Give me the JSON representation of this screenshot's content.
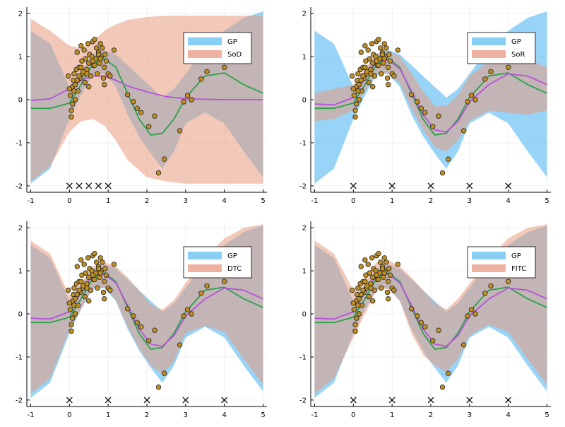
{
  "colors": {
    "gp_band": "#61bdf2",
    "approx_band": "#e89a80",
    "gp_line": "#2aa24a",
    "approx_line": "#b453d8",
    "point_fill": "#c08f22",
    "point_stroke": "#222222",
    "axis": "#000000",
    "grid": "#ececec"
  },
  "chart_data": [
    {
      "type": "line",
      "panel": "top-left",
      "legend": [
        "GP",
        "SoD"
      ],
      "legend_position": "top-right",
      "xlim": [
        -1.1,
        5.1
      ],
      "ylim": [
        -2.15,
        2.15
      ],
      "xticks": [
        "-1",
        "0",
        "1",
        "2",
        "3",
        "4",
        "5"
      ],
      "yticks": [
        "-2",
        "-1",
        "0",
        "1",
        "2"
      ],
      "inducing_x": [
        0,
        0.25,
        0.5,
        0.75,
        1
      ],
      "gp_mean": {
        "x": [
          -1,
          -0.5,
          0,
          0.3,
          0.6,
          0.9,
          1.2,
          1.5,
          1.8,
          2.1,
          2.4,
          2.7,
          3,
          3.5,
          4,
          4.5,
          5
        ],
        "y": [
          -0.2,
          -0.2,
          -0.08,
          0.35,
          0.82,
          0.95,
          0.75,
          0.15,
          -0.45,
          -0.82,
          -0.78,
          -0.45,
          0.05,
          0.55,
          0.62,
          0.35,
          0.15
        ]
      },
      "gp_band": {
        "x": [
          -1,
          -0.5,
          0,
          0.3,
          0.6,
          0.9,
          1.2,
          1.5,
          1.8,
          2.1,
          2.4,
          2.7,
          3,
          3.5,
          4,
          4.5,
          5
        ],
        "lower": [
          -1.95,
          -1.6,
          -0.45,
          0.1,
          0.58,
          0.6,
          0.3,
          -0.35,
          -0.85,
          -1.25,
          -1.6,
          -1.2,
          -0.55,
          -0.3,
          -0.55,
          -1.2,
          -1.8
        ],
        "upper": [
          1.6,
          1.3,
          0.3,
          0.65,
          1.05,
          1.15,
          1.05,
          0.8,
          0.55,
          0.3,
          0.05,
          0.25,
          0.6,
          1.2,
          1.6,
          1.9,
          2.05
        ]
      },
      "approx_mean": {
        "x": [
          -1,
          -0.5,
          0,
          0.3,
          0.6,
          0.9,
          1.2,
          1.5,
          2,
          2.5,
          3,
          4,
          5
        ],
        "y": [
          -0.02,
          0.02,
          0.25,
          0.45,
          0.55,
          0.55,
          0.45,
          0.32,
          0.18,
          0.07,
          0.02,
          0,
          0
        ]
      },
      "approx_band": {
        "x": [
          -1,
          -0.5,
          0,
          0.3,
          0.6,
          0.9,
          1.2,
          1.5,
          2,
          2.5,
          3,
          4,
          5
        ],
        "lower": [
          -1.9,
          -1.55,
          -0.75,
          -0.5,
          -0.45,
          -0.6,
          -0.95,
          -1.4,
          -1.8,
          -1.9,
          -1.95,
          -1.95,
          -1.95
        ],
        "upper": [
          1.88,
          1.6,
          1.25,
          1.2,
          1.35,
          1.6,
          1.75,
          1.85,
          1.92,
          1.95,
          1.95,
          1.95,
          1.95
        ]
      }
    },
    {
      "type": "line",
      "panel": "top-right",
      "legend": [
        "GP",
        "SoR"
      ],
      "legend_position": "top-right",
      "xlim": [
        -1.1,
        5.1
      ],
      "ylim": [
        -2.15,
        2.15
      ],
      "xticks": [
        "-1",
        "0",
        "1",
        "2",
        "3",
        "4",
        "5"
      ],
      "yticks": [
        "-2",
        "-1",
        "0",
        "1",
        "2"
      ],
      "inducing_x": [
        0,
        1,
        2,
        3,
        4
      ],
      "gp_mean": {
        "x": [
          -1,
          -0.5,
          0,
          0.3,
          0.6,
          0.9,
          1.2,
          1.5,
          1.8,
          2.1,
          2.4,
          2.7,
          3,
          3.5,
          4,
          4.5,
          5
        ],
        "y": [
          -0.2,
          -0.2,
          -0.08,
          0.35,
          0.82,
          0.95,
          0.75,
          0.15,
          -0.45,
          -0.82,
          -0.78,
          -0.45,
          0.05,
          0.55,
          0.62,
          0.35,
          0.15
        ]
      },
      "gp_band": {
        "x": [
          -1,
          -0.5,
          0,
          0.3,
          0.6,
          0.9,
          1.2,
          1.5,
          1.8,
          2.1,
          2.4,
          2.7,
          3,
          3.5,
          4,
          4.5,
          5
        ],
        "lower": [
          -1.95,
          -1.6,
          -0.45,
          0.1,
          0.58,
          0.6,
          0.3,
          -0.35,
          -0.85,
          -1.25,
          -1.6,
          -1.2,
          -0.55,
          -0.3,
          -0.55,
          -1.2,
          -1.8
        ],
        "upper": [
          1.6,
          1.3,
          0.3,
          0.65,
          1.05,
          1.15,
          1.05,
          0.8,
          0.55,
          0.3,
          0.05,
          0.25,
          0.6,
          1.2,
          1.6,
          1.9,
          2.05
        ]
      },
      "approx_mean": {
        "x": [
          -1,
          -0.5,
          0,
          0.3,
          0.6,
          0.9,
          1.2,
          1.5,
          1.8,
          2.1,
          2.4,
          2.7,
          3,
          3.5,
          4,
          4.5,
          5
        ],
        "y": [
          -0.1,
          -0.12,
          0.05,
          0.5,
          0.9,
          0.92,
          0.72,
          0.2,
          -0.35,
          -0.7,
          -0.75,
          -0.5,
          -0.05,
          0.35,
          0.6,
          0.55,
          0.35
        ]
      },
      "approx_band": {
        "x": [
          -1,
          -0.5,
          0,
          0.3,
          0.6,
          0.9,
          1.2,
          1.5,
          1.8,
          2.1,
          2.4,
          2.7,
          3,
          3.5,
          4,
          4.5,
          5
        ],
        "lower": [
          -0.5,
          -0.45,
          -0.25,
          0.2,
          0.62,
          0.62,
          0.38,
          -0.2,
          -0.7,
          -1.1,
          -1.2,
          -0.95,
          -0.5,
          -0.25,
          -0.3,
          -0.35,
          -0.25
        ],
        "upper": [
          0.15,
          0.25,
          0.35,
          0.75,
          1.08,
          1.12,
          1.0,
          0.62,
          0.2,
          -0.15,
          -0.15,
          0.1,
          0.55,
          0.9,
          1.05,
          0.95,
          0.75
        ]
      }
    },
    {
      "type": "line",
      "panel": "bottom-left",
      "legend": [
        "GP",
        "DTC"
      ],
      "legend_position": "top-right",
      "xlim": [
        -1.1,
        5.1
      ],
      "ylim": [
        -2.15,
        2.15
      ],
      "xticks": [
        "-1",
        "0",
        "1",
        "2",
        "3",
        "4",
        "5"
      ],
      "yticks": [
        "-2",
        "-1",
        "0",
        "1",
        "2"
      ],
      "inducing_x": [
        0,
        1,
        2,
        3,
        4
      ],
      "gp_mean": {
        "x": [
          -1,
          -0.5,
          0,
          0.3,
          0.6,
          0.9,
          1.2,
          1.5,
          1.8,
          2.1,
          2.4,
          2.7,
          3,
          3.5,
          4,
          4.5,
          5
        ],
        "y": [
          -0.2,
          -0.2,
          -0.08,
          0.35,
          0.82,
          0.95,
          0.75,
          0.15,
          -0.45,
          -0.82,
          -0.78,
          -0.45,
          0.05,
          0.55,
          0.62,
          0.35,
          0.15
        ]
      },
      "gp_band": {
        "x": [
          -1,
          -0.5,
          0,
          0.3,
          0.6,
          0.9,
          1.2,
          1.5,
          1.8,
          2.1,
          2.4,
          2.7,
          3,
          3.5,
          4,
          4.5,
          5
        ],
        "lower": [
          -1.95,
          -1.6,
          -0.45,
          0.1,
          0.58,
          0.6,
          0.3,
          -0.35,
          -0.85,
          -1.25,
          -1.6,
          -1.2,
          -0.55,
          -0.3,
          -0.55,
          -1.2,
          -1.8
        ],
        "upper": [
          1.6,
          1.3,
          0.3,
          0.65,
          1.05,
          1.15,
          1.05,
          0.8,
          0.55,
          0.3,
          0.05,
          0.25,
          0.6,
          1.2,
          1.6,
          1.9,
          2.05
        ]
      },
      "approx_mean": {
        "x": [
          -1,
          -0.5,
          0,
          0.3,
          0.6,
          0.9,
          1.2,
          1.5,
          1.8,
          2.1,
          2.4,
          2.7,
          3,
          3.5,
          4,
          4.5,
          5
        ],
        "y": [
          -0.1,
          -0.12,
          0.05,
          0.5,
          0.9,
          0.92,
          0.72,
          0.2,
          -0.35,
          -0.7,
          -0.75,
          -0.5,
          -0.05,
          0.35,
          0.6,
          0.55,
          0.35
        ]
      },
      "approx_band": {
        "x": [
          -1,
          -0.5,
          0,
          0.3,
          0.6,
          0.9,
          1.2,
          1.5,
          1.8,
          2.1,
          2.4,
          2.7,
          3,
          3.5,
          4,
          4.5,
          5
        ],
        "lower": [
          -1.85,
          -1.5,
          -0.38,
          0.12,
          0.6,
          0.62,
          0.32,
          -0.3,
          -0.8,
          -1.2,
          -1.4,
          -1.1,
          -0.45,
          -0.28,
          -0.42,
          -1.05,
          -1.65
        ],
        "upper": [
          1.7,
          1.4,
          0.42,
          0.72,
          1.1,
          1.2,
          1.1,
          0.85,
          0.55,
          0.22,
          0.1,
          0.32,
          0.72,
          1.3,
          1.75,
          2.0,
          2.08
        ]
      }
    },
    {
      "type": "line",
      "panel": "bottom-right",
      "legend": [
        "GP",
        "FITC"
      ],
      "legend_position": "top-right",
      "xlim": [
        -1.1,
        5.1
      ],
      "ylim": [
        -2.15,
        2.15
      ],
      "xticks": [
        "-1",
        "0",
        "1",
        "2",
        "3",
        "4",
        "5"
      ],
      "yticks": [
        "-2",
        "-1",
        "0",
        "1",
        "2"
      ],
      "inducing_x": [
        0,
        1,
        2,
        3,
        4
      ],
      "gp_mean": {
        "x": [
          -1,
          -0.5,
          0,
          0.3,
          0.6,
          0.9,
          1.2,
          1.5,
          1.8,
          2.1,
          2.4,
          2.7,
          3,
          3.5,
          4,
          4.5,
          5
        ],
        "y": [
          -0.2,
          -0.2,
          -0.08,
          0.35,
          0.82,
          0.95,
          0.75,
          0.15,
          -0.45,
          -0.82,
          -0.78,
          -0.45,
          0.05,
          0.55,
          0.62,
          0.35,
          0.15
        ]
      },
      "gp_band": {
        "x": [
          -1,
          -0.5,
          0,
          0.3,
          0.6,
          0.9,
          1.2,
          1.5,
          1.8,
          2.1,
          2.4,
          2.7,
          3,
          3.5,
          4,
          4.5,
          5
        ],
        "lower": [
          -1.95,
          -1.6,
          -0.45,
          0.1,
          0.58,
          0.6,
          0.3,
          -0.35,
          -0.85,
          -1.25,
          -1.6,
          -1.2,
          -0.55,
          -0.3,
          -0.55,
          -1.2,
          -1.8
        ],
        "upper": [
          1.6,
          1.3,
          0.3,
          0.65,
          1.05,
          1.15,
          1.05,
          0.8,
          0.55,
          0.3,
          0.05,
          0.25,
          0.6,
          1.2,
          1.6,
          1.9,
          2.05
        ]
      },
      "approx_mean": {
        "x": [
          -1,
          -0.5,
          0,
          0.3,
          0.6,
          0.9,
          1.2,
          1.5,
          1.8,
          2.1,
          2.4,
          2.7,
          3,
          3.5,
          4,
          4.5,
          5
        ],
        "y": [
          -0.1,
          -0.12,
          0.05,
          0.5,
          0.9,
          0.92,
          0.72,
          0.2,
          -0.35,
          -0.7,
          -0.75,
          -0.5,
          -0.05,
          0.35,
          0.6,
          0.55,
          0.35
        ]
      },
      "approx_band": {
        "x": [
          -1,
          -0.5,
          0,
          0.3,
          0.6,
          0.9,
          1.2,
          1.5,
          1.8,
          2.1,
          2.4,
          2.7,
          3,
          3.5,
          4,
          4.5,
          5
        ],
        "lower": [
          -1.85,
          -1.5,
          -0.55,
          0.0,
          0.55,
          0.58,
          0.3,
          -0.45,
          -0.95,
          -1.2,
          -1.35,
          -1.05,
          -0.5,
          -0.25,
          -0.42,
          -1.05,
          -1.65
        ],
        "upper": [
          1.7,
          1.4,
          0.55,
          0.85,
          1.2,
          1.25,
          1.1,
          0.85,
          0.55,
          0.25,
          0.1,
          0.35,
          0.7,
          1.3,
          1.75,
          2.0,
          2.08
        ]
      }
    }
  ],
  "observations": {
    "x": [
      -0.03,
      0.02,
      0.05,
      0.08,
      0.1,
      0.12,
      0.15,
      0.18,
      0.2,
      0.22,
      0.25,
      0.28,
      0.3,
      0.32,
      0.35,
      0.38,
      0.4,
      0.42,
      0.45,
      0.48,
      0.5,
      0.52,
      0.55,
      0.58,
      0.6,
      0.62,
      0.65,
      0.68,
      0.7,
      0.72,
      0.75,
      0.78,
      0.8,
      0.82,
      0.85,
      0.88,
      0.9,
      0.92,
      0.95,
      1.0,
      1.05,
      1.15,
      0.05,
      0.12,
      0.2,
      0.3,
      0.45,
      0.6,
      0.75,
      0.9,
      0.0,
      0.08,
      0.15,
      0.25,
      0.35,
      0.5,
      0.65,
      0.8,
      1.5,
      1.65,
      1.75,
      1.85,
      2.05,
      2.2,
      2.3,
      2.45,
      2.85,
      2.95,
      3.05,
      3.15,
      3.4,
      3.55,
      4.0
    ],
    "y": [
      0.55,
      0.1,
      -0.25,
      0.3,
      0.45,
      0.6,
      0.35,
      0.7,
      1.1,
      0.2,
      0.75,
      0.5,
      1.25,
      0.9,
      0.6,
      1.15,
      0.4,
      0.95,
      0.7,
      1.3,
      0.85,
      1.05,
      0.55,
      1.0,
      1.35,
      0.8,
      1.4,
      0.95,
      1.2,
      0.6,
      1.1,
      0.85,
      1.3,
      1.0,
      1.2,
      0.5,
      0.75,
      1.05,
      0.9,
      0.6,
      0.55,
      1.15,
      -0.4,
      0.2,
      0.45,
      0.75,
      0.6,
      0.9,
      1.05,
      0.35,
      0.25,
      -0.1,
      0.0,
      0.55,
      0.65,
      0.3,
      0.8,
      0.95,
      0.12,
      -0.05,
      -0.2,
      -0.3,
      -0.62,
      -0.38,
      -1.7,
      -1.38,
      -0.72,
      -0.05,
      0.1,
      0.0,
      0.48,
      0.65,
      0.75
    ]
  }
}
